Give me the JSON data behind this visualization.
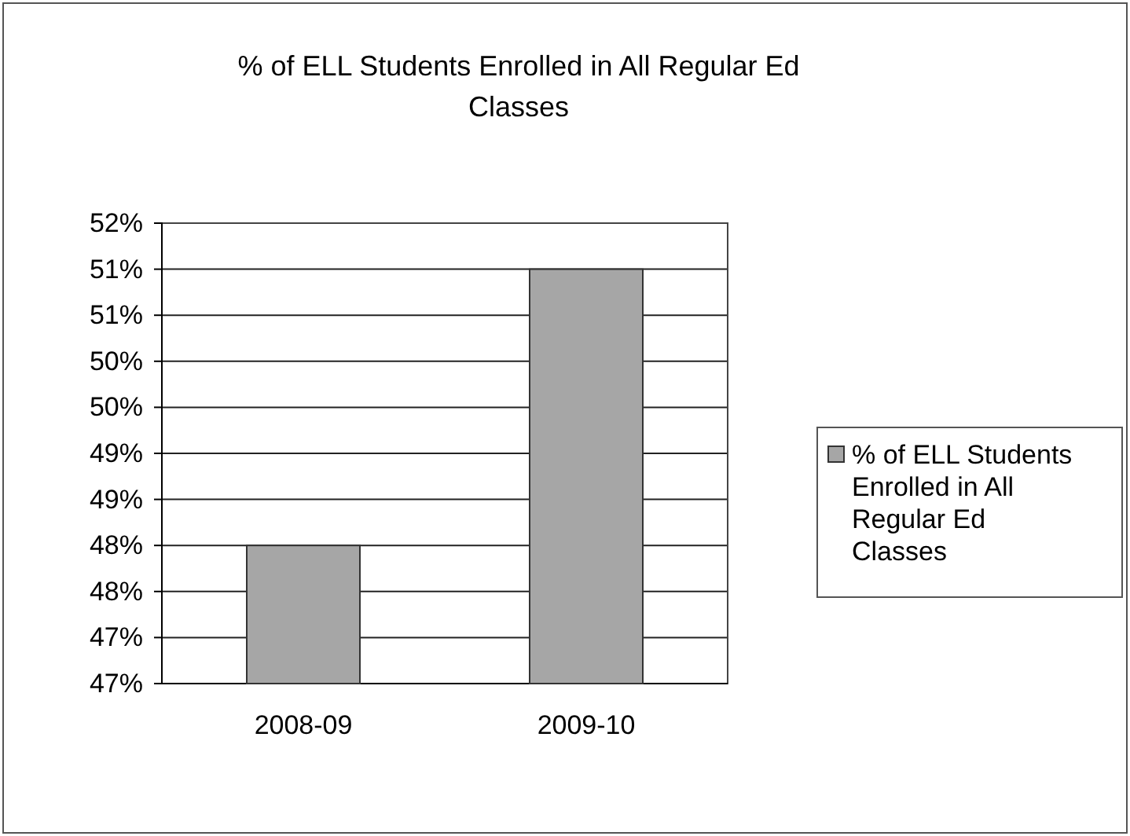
{
  "chart_data": {
    "type": "bar",
    "title": "% of ELL Students Enrolled in All Regular Ed Classes",
    "categories": [
      "2008-09",
      "2009-10"
    ],
    "series": [
      {
        "name": "% of ELL Students Enrolled in All Regular Ed Classes",
        "color": "#a6a6a6",
        "values": [
          48,
          51
        ]
      }
    ],
    "ylim": [
      46.5,
      51.5
    ],
    "yticks": [
      {
        "value": 46.5,
        "label": "47%"
      },
      {
        "value": 47,
        "label": "47%"
      },
      {
        "value": 47.5,
        "label": "48%"
      },
      {
        "value": 48,
        "label": "48%"
      },
      {
        "value": 48.5,
        "label": "49%"
      },
      {
        "value": 49,
        "label": "49%"
      },
      {
        "value": 49.5,
        "label": "50%"
      },
      {
        "value": 50,
        "label": "50%"
      },
      {
        "value": 50.5,
        "label": "51%"
      },
      {
        "value": 51,
        "label": "51%"
      },
      {
        "value": 51.5,
        "label": "52%"
      }
    ],
    "grid": "y",
    "legend": "right"
  }
}
